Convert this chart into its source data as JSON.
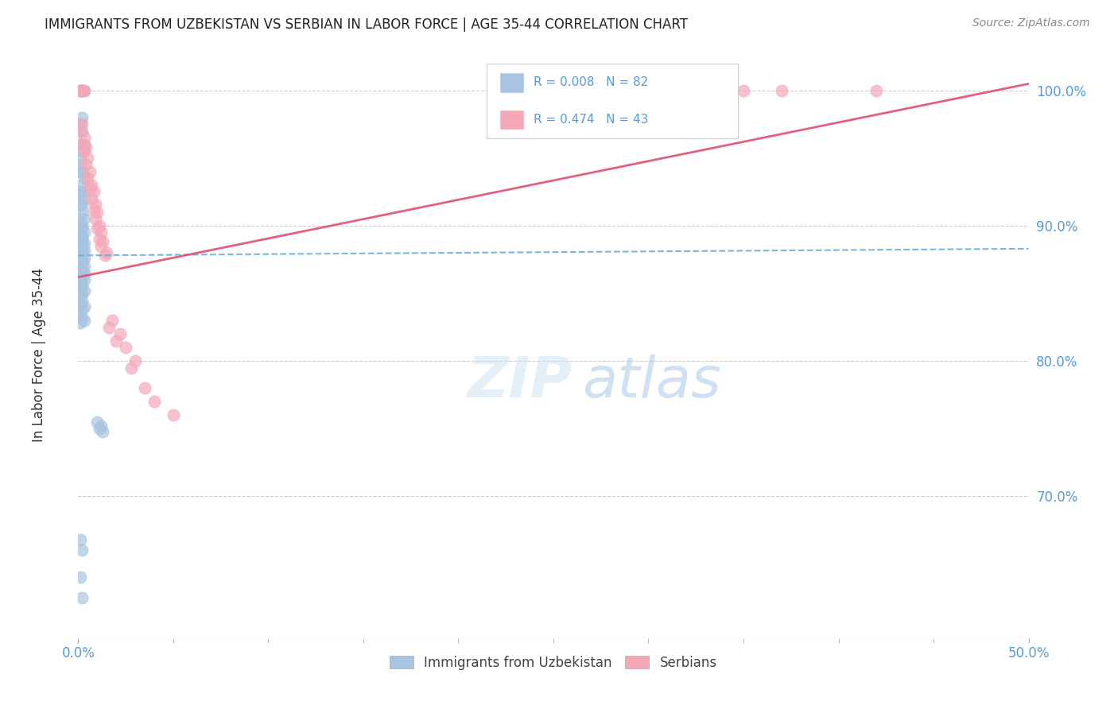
{
  "title": "IMMIGRANTS FROM UZBEKISTAN VS SERBIAN IN LABOR FORCE | AGE 35-44 CORRELATION CHART",
  "source": "Source: ZipAtlas.com",
  "ylabel_label": "In Labor Force | Age 35-44",
  "legend_uz": "Immigrants from Uzbekistan",
  "legend_sr": "Serbians",
  "R_uz": "0.008",
  "N_uz": "82",
  "R_sr": "0.474",
  "N_sr": "43",
  "color_uz": "#a8c4e0",
  "color_sr": "#f4a8b8",
  "line_color_uz": "#6baed6",
  "line_color_sr": "#e05070",
  "text_color_blue": "#5599dd",
  "tick_color_blue": "#5599dd",
  "background_color": "#ffffff",
  "xlim": [
    0.0,
    0.5
  ],
  "ylim": [
    0.595,
    1.025
  ],
  "yticks": [
    0.7,
    0.8,
    0.9,
    1.0
  ],
  "xtick_left": "0.0%",
  "xtick_right": "50.0%",
  "uz_line_x0": 0.0,
  "uz_line_y0": 0.878,
  "uz_line_x1": 0.5,
  "uz_line_y1": 0.883,
  "sr_line_x0": 0.0,
  "sr_line_y0": 0.862,
  "sr_line_x1": 0.5,
  "sr_line_y1": 1.005,
  "uz_x": [
    0.001,
    0.002,
    0.001,
    0.003,
    0.002,
    0.001,
    0.002,
    0.003,
    0.001,
    0.002,
    0.001,
    0.001,
    0.002,
    0.001,
    0.003,
    0.002,
    0.001,
    0.002,
    0.001,
    0.003,
    0.002,
    0.001,
    0.002,
    0.001,
    0.003,
    0.002,
    0.001,
    0.002,
    0.003,
    0.001,
    0.002,
    0.001,
    0.002,
    0.001,
    0.003,
    0.002,
    0.001,
    0.002,
    0.001,
    0.003,
    0.002,
    0.001,
    0.002,
    0.001,
    0.001,
    0.002,
    0.003,
    0.001,
    0.002,
    0.001,
    0.002,
    0.001,
    0.003,
    0.002,
    0.001,
    0.002,
    0.003,
    0.001,
    0.002,
    0.003,
    0.001,
    0.002,
    0.001,
    0.003,
    0.002,
    0.001,
    0.002,
    0.001,
    0.003,
    0.002,
    0.001,
    0.002,
    0.003,
    0.001,
    0.01,
    0.012,
    0.011,
    0.013,
    0.001,
    0.002,
    0.001,
    0.002
  ],
  "uz_y": [
    1.0,
    1.0,
    1.0,
    1.0,
    0.98,
    0.975,
    0.97,
    0.96,
    0.96,
    0.955,
    0.95,
    0.945,
    0.94,
    0.94,
    0.935,
    0.93,
    0.925,
    0.925,
    0.92,
    0.92,
    0.915,
    0.915,
    0.91,
    0.905,
    0.905,
    0.9,
    0.9,
    0.898,
    0.895,
    0.893,
    0.892,
    0.89,
    0.89,
    0.888,
    0.887,
    0.887,
    0.885,
    0.883,
    0.882,
    0.882,
    0.88,
    0.88,
    0.879,
    0.878,
    0.877,
    0.876,
    0.876,
    0.875,
    0.875,
    0.874,
    0.873,
    0.872,
    0.87,
    0.869,
    0.868,
    0.867,
    0.865,
    0.864,
    0.862,
    0.86,
    0.858,
    0.856,
    0.854,
    0.852,
    0.85,
    0.848,
    0.845,
    0.842,
    0.84,
    0.838,
    0.835,
    0.832,
    0.83,
    0.828,
    0.755,
    0.752,
    0.75,
    0.748,
    0.668,
    0.66,
    0.64,
    0.625
  ],
  "sr_x": [
    0.001,
    0.002,
    0.001,
    0.003,
    0.002,
    0.001,
    0.003,
    0.002,
    0.004,
    0.003,
    0.005,
    0.004,
    0.006,
    0.005,
    0.007,
    0.006,
    0.008,
    0.007,
    0.009,
    0.008,
    0.01,
    0.009,
    0.011,
    0.01,
    0.012,
    0.011,
    0.013,
    0.012,
    0.015,
    0.014,
    0.018,
    0.016,
    0.022,
    0.02,
    0.025,
    0.03,
    0.028,
    0.035,
    0.04,
    0.05,
    0.35,
    0.37,
    0.42
  ],
  "sr_y": [
    1.0,
    1.0,
    1.0,
    1.0,
    0.975,
    0.97,
    0.965,
    0.96,
    0.958,
    0.955,
    0.95,
    0.945,
    0.94,
    0.935,
    0.93,
    0.928,
    0.925,
    0.92,
    0.916,
    0.912,
    0.91,
    0.905,
    0.9,
    0.898,
    0.895,
    0.89,
    0.888,
    0.885,
    0.88,
    0.878,
    0.83,
    0.825,
    0.82,
    0.815,
    0.81,
    0.8,
    0.795,
    0.78,
    0.77,
    0.76,
    1.0,
    1.0,
    1.0
  ]
}
